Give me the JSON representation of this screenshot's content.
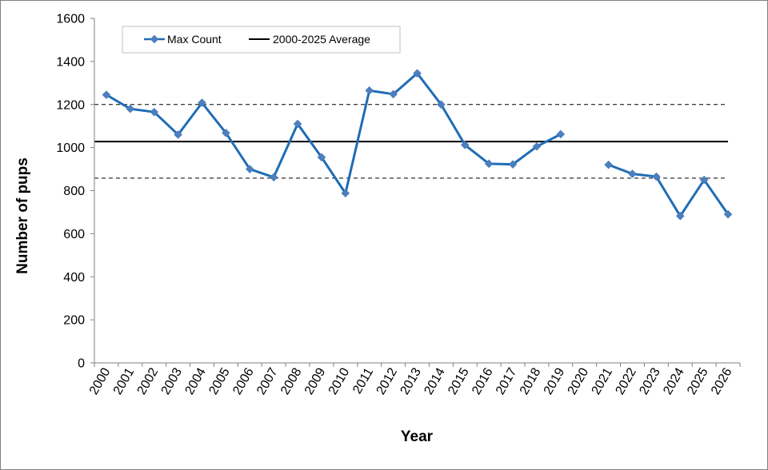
{
  "chart_data": {
    "type": "line",
    "xlabel": "Year",
    "ylabel": "Number of pups",
    "ylim": [
      0,
      1600
    ],
    "yticks": [
      0,
      200,
      400,
      600,
      800,
      1000,
      1200,
      1400,
      1600
    ],
    "categories": [
      "2000",
      "2001",
      "2002",
      "2003",
      "2004",
      "2005",
      "2006",
      "2007",
      "2008",
      "2009",
      "2010",
      "2011",
      "2012",
      "2013",
      "2014",
      "2015",
      "2016",
      "2017",
      "2018",
      "2019",
      "2020",
      "2021",
      "2022",
      "2023",
      "2024",
      "2025",
      "2026"
    ],
    "series": [
      {
        "name": "Max Count",
        "color": "#1f6db5",
        "marker": "diamond",
        "values": [
          1245,
          1180,
          1165,
          1060,
          1208,
          1068,
          900,
          862,
          1110,
          955,
          788,
          1265,
          1248,
          1345,
          1200,
          1012,
          925,
          922,
          1005,
          1062,
          null,
          920,
          878,
          865,
          682,
          850,
          690
        ]
      },
      {
        "name": "2000-2025 Average",
        "color": "#000000",
        "value": 1028
      }
    ],
    "reference_lines": [
      {
        "value": 1200,
        "style": "dashed"
      },
      {
        "value": 858,
        "style": "dashed"
      }
    ],
    "legend_position": "top-left",
    "grid": false
  }
}
